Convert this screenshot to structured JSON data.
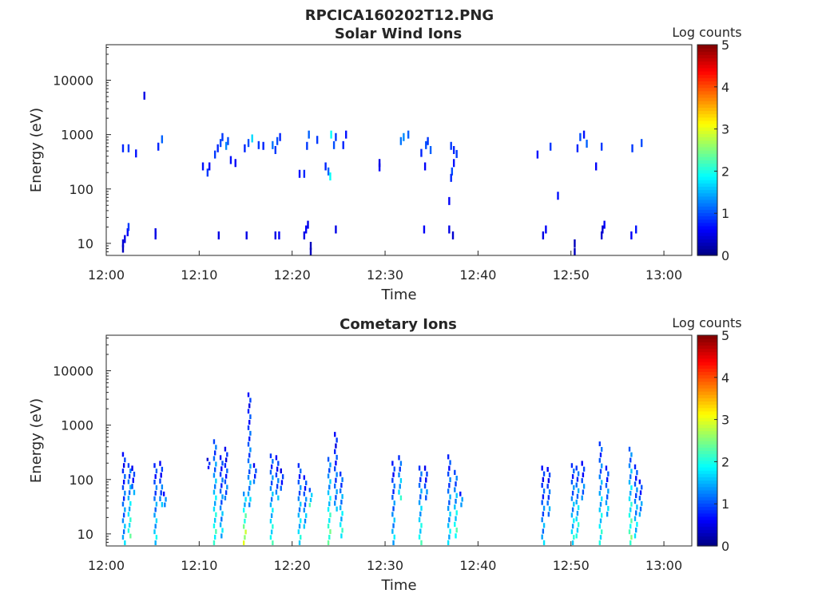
{
  "figure_title": "RPCICA160202T12.PNG",
  "chart_data": [
    {
      "type": "heatmap",
      "title": "Solar Wind Ions",
      "xlabel": "Time",
      "ylabel": "Energy (eV)",
      "x_ticks": [
        "12:00",
        "12:10",
        "12:20",
        "12:30",
        "12:40",
        "12:50",
        "13:00"
      ],
      "xlim": [
        "12:00",
        "13:03"
      ],
      "y_scale": "log",
      "y_ticks": [
        10,
        100,
        1000,
        10000
      ],
      "ylim": [
        6,
        45000
      ],
      "colorbar": {
        "label": "Log counts",
        "range": [
          0,
          5
        ],
        "ticks": [
          0,
          1,
          2,
          3,
          4,
          5
        ],
        "colormap": "jet"
      },
      "grid": false,
      "cells": [
        {
          "t": "12:01.7",
          "e": 8,
          "v": 0.3
        },
        {
          "t": "12:01.7",
          "e": 10,
          "v": 0.4
        },
        {
          "t": "12:01.9",
          "e": 12,
          "v": 0.5
        },
        {
          "t": "12:02.2",
          "e": 16,
          "v": 0.6
        },
        {
          "t": "12:02.3",
          "e": 20,
          "v": 0.9
        },
        {
          "t": "12:01.7",
          "e": 560,
          "v": 0.8
        },
        {
          "t": "12:02.3",
          "e": 560,
          "v": 0.9
        },
        {
          "t": "12:03.1",
          "e": 450,
          "v": 0.7
        },
        {
          "t": "12:04.0",
          "e": 5200,
          "v": 0.5
        },
        {
          "t": "12:05.2",
          "e": 14,
          "v": 0.5
        },
        {
          "t": "12:05.2",
          "e": 16,
          "v": 0.5
        },
        {
          "t": "12:05.5",
          "e": 600,
          "v": 0.8
        },
        {
          "t": "12:05.9",
          "e": 820,
          "v": 1.1
        },
        {
          "t": "12:10.3",
          "e": 260,
          "v": 0.7
        },
        {
          "t": "12:10.8",
          "e": 200,
          "v": 0.9
        },
        {
          "t": "12:11.0",
          "e": 260,
          "v": 0.6
        },
        {
          "t": "12:11.6",
          "e": 430,
          "v": 0.9
        },
        {
          "t": "12:11.9",
          "e": 560,
          "v": 0.8
        },
        {
          "t": "12:12.2",
          "e": 700,
          "v": 1.0
        },
        {
          "t": "12:12.4",
          "e": 900,
          "v": 0.9
        },
        {
          "t": "12:12.8",
          "e": 620,
          "v": 1.3
        },
        {
          "t": "12:13.0",
          "e": 760,
          "v": 1.0
        },
        {
          "t": "12:13.3",
          "e": 340,
          "v": 0.7
        },
        {
          "t": "12:13.8",
          "e": 300,
          "v": 0.6
        },
        {
          "t": "12:12.0",
          "e": 14,
          "v": 0.5
        },
        {
          "t": "12:15.0",
          "e": 14,
          "v": 0.5
        },
        {
          "t": "12:14.8",
          "e": 560,
          "v": 0.8
        },
        {
          "t": "12:15.2",
          "e": 700,
          "v": 1.0
        },
        {
          "t": "12:15.6",
          "e": 850,
          "v": 1.7
        },
        {
          "t": "12:16.3",
          "e": 640,
          "v": 0.9
        },
        {
          "t": "12:16.8",
          "e": 620,
          "v": 0.8
        },
        {
          "t": "12:17.8",
          "e": 640,
          "v": 1.2
        },
        {
          "t": "12:18.1",
          "e": 520,
          "v": 0.9
        },
        {
          "t": "12:18.3",
          "e": 760,
          "v": 1.0
        },
        {
          "t": "12:18.6",
          "e": 900,
          "v": 0.8
        },
        {
          "t": "12:18.1",
          "e": 14,
          "v": 0.5
        },
        {
          "t": "12:18.5",
          "e": 14,
          "v": 0.6
        },
        {
          "t": "12:20.7",
          "e": 190,
          "v": 0.7
        },
        {
          "t": "12:21.2",
          "e": 190,
          "v": 0.8
        },
        {
          "t": "12:21.5",
          "e": 620,
          "v": 0.9
        },
        {
          "t": "12:21.7",
          "e": 1000,
          "v": 1.1
        },
        {
          "t": "12:21.2",
          "e": 14,
          "v": 0.5
        },
        {
          "t": "12:21.4",
          "e": 18,
          "v": 0.6
        },
        {
          "t": "12:21.6",
          "e": 22,
          "v": 0.5
        },
        {
          "t": "12:21.9",
          "e": 9,
          "v": 0.3
        },
        {
          "t": "12:21.9",
          "e": 7,
          "v": 0.3
        },
        {
          "t": "12:22.6",
          "e": 800,
          "v": 0.9
        },
        {
          "t": "12:23.5",
          "e": 260,
          "v": 0.8
        },
        {
          "t": "12:23.8",
          "e": 210,
          "v": 1.1
        },
        {
          "t": "12:24.0",
          "e": 170,
          "v": 1.9
        },
        {
          "t": "12:24.1",
          "e": 1000,
          "v": 1.9
        },
        {
          "t": "12:24.4",
          "e": 640,
          "v": 1.0
        },
        {
          "t": "12:24.6",
          "e": 900,
          "v": 0.9
        },
        {
          "t": "12:25.4",
          "e": 640,
          "v": 0.8
        },
        {
          "t": "12:25.7",
          "e": 1000,
          "v": 0.7
        },
        {
          "t": "12:24.6",
          "e": 18,
          "v": 0.5
        },
        {
          "t": "12:29.3",
          "e": 250,
          "v": 0.6
        },
        {
          "t": "12:29.3",
          "e": 300,
          "v": 0.5
        },
        {
          "t": "12:31.6",
          "e": 760,
          "v": 1.2
        },
        {
          "t": "12:31.9",
          "e": 900,
          "v": 1.3
        },
        {
          "t": "12:32.4",
          "e": 1000,
          "v": 1.1
        },
        {
          "t": "12:33.8",
          "e": 460,
          "v": 0.8
        },
        {
          "t": "12:34.3",
          "e": 640,
          "v": 1.0
        },
        {
          "t": "12:34.5",
          "e": 760,
          "v": 0.9
        },
        {
          "t": "12:34.8",
          "e": 520,
          "v": 1.1
        },
        {
          "t": "12:34.2",
          "e": 260,
          "v": 0.6
        },
        {
          "t": "12:34.1",
          "e": 18,
          "v": 0.6
        },
        {
          "t": "12:37.0",
          "e": 620,
          "v": 0.9
        },
        {
          "t": "12:37.3",
          "e": 520,
          "v": 0.8
        },
        {
          "t": "12:37.6",
          "e": 440,
          "v": 0.9
        },
        {
          "t": "12:37.3",
          "e": 300,
          "v": 0.7
        },
        {
          "t": "12:37.1",
          "e": 210,
          "v": 1.0
        },
        {
          "t": "12:37.0",
          "e": 160,
          "v": 0.8
        },
        {
          "t": "12:36.8",
          "e": 60,
          "v": 0.6
        },
        {
          "t": "12:36.8",
          "e": 18,
          "v": 0.5
        },
        {
          "t": "12:37.2",
          "e": 14,
          "v": 0.4
        },
        {
          "t": "12:46.3",
          "e": 430,
          "v": 0.7
        },
        {
          "t": "12:46.9",
          "e": 14,
          "v": 0.5
        },
        {
          "t": "12:47.2",
          "e": 18,
          "v": 0.6
        },
        {
          "t": "12:47.7",
          "e": 600,
          "v": 0.9
        },
        {
          "t": "12:48.5",
          "e": 75,
          "v": 0.7
        },
        {
          "t": "12:50.3",
          "e": 10,
          "v": 0.3
        },
        {
          "t": "12:50.3",
          "e": 7,
          "v": 0.3
        },
        {
          "t": "12:50.6",
          "e": 560,
          "v": 0.8
        },
        {
          "t": "12:50.9",
          "e": 900,
          "v": 1.0
        },
        {
          "t": "12:51.6",
          "e": 680,
          "v": 1.1
        },
        {
          "t": "12:51.3",
          "e": 1000,
          "v": 0.7
        },
        {
          "t": "12:52.6",
          "e": 260,
          "v": 0.6
        },
        {
          "t": "12:53.2",
          "e": 600,
          "v": 0.9
        },
        {
          "t": "12:53.2",
          "e": 14,
          "v": 0.4
        },
        {
          "t": "12:53.3",
          "e": 18,
          "v": 0.4
        },
        {
          "t": "12:53.5",
          "e": 22,
          "v": 0.6
        },
        {
          "t": "12:56.4",
          "e": 14,
          "v": 0.6
        },
        {
          "t": "12:56.5",
          "e": 560,
          "v": 0.9
        },
        {
          "t": "12:56.9",
          "e": 18,
          "v": 0.7
        },
        {
          "t": "12:57.5",
          "e": 700,
          "v": 1.0
        }
      ]
    },
    {
      "type": "heatmap",
      "title": "Cometary Ions",
      "xlabel": "Time",
      "ylabel": "Energy (eV)",
      "x_ticks": [
        "12:00",
        "12:10",
        "12:20",
        "12:30",
        "12:40",
        "12:50",
        "13:00"
      ],
      "xlim": [
        "12:00",
        "13:03"
      ],
      "y_scale": "log",
      "y_ticks": [
        10,
        100,
        1000,
        10000
      ],
      "ylim": [
        6,
        45000
      ],
      "colorbar": {
        "label": "Log counts",
        "range": [
          0,
          5
        ],
        "ticks": [
          0,
          1,
          2,
          3,
          4,
          5
        ],
        "colormap": "jet"
      },
      "grid": false,
      "bursts": [
        {
          "t": "12:01.8",
          "e_min": 6,
          "e_max": 320,
          "v": 1.2
        },
        {
          "t": "12:02.4",
          "e_min": 8,
          "e_max": 200,
          "v": 1.7
        },
        {
          "t": "12:02.8",
          "e_min": 50,
          "e_max": 180,
          "v": 1.0
        },
        {
          "t": "12:05.2",
          "e_min": 6,
          "e_max": 200,
          "v": 1.4
        },
        {
          "t": "12:05.8",
          "e_min": 30,
          "e_max": 220,
          "v": 1.1
        },
        {
          "t": "12:06.2",
          "e_min": 30,
          "e_max": 60,
          "v": 1.2
        },
        {
          "t": "12:10.9",
          "e_min": 150,
          "e_max": 250,
          "v": 0.7
        },
        {
          "t": "12:11.6",
          "e_min": 6,
          "e_max": 550,
          "v": 1.7
        },
        {
          "t": "12:12.3",
          "e_min": 8,
          "e_max": 280,
          "v": 1.3
        },
        {
          "t": "12:12.8",
          "e_min": 40,
          "e_max": 400,
          "v": 1.0
        },
        {
          "t": "12:14.8",
          "e_min": 6,
          "e_max": 60,
          "v": 2.4
        },
        {
          "t": "12:15.3",
          "e_min": 30,
          "e_max": 4000,
          "v": 1.2
        },
        {
          "t": "12:15.9",
          "e_min": 80,
          "e_max": 200,
          "v": 1.0
        },
        {
          "t": "12:17.7",
          "e_min": 6,
          "e_max": 300,
          "v": 1.6
        },
        {
          "t": "12:18.3",
          "e_min": 40,
          "e_max": 280,
          "v": 1.1
        },
        {
          "t": "12:18.8",
          "e_min": 60,
          "e_max": 160,
          "v": 0.9
        },
        {
          "t": "12:20.7",
          "e_min": 6,
          "e_max": 200,
          "v": 1.5
        },
        {
          "t": "12:21.3",
          "e_min": 12,
          "e_max": 120,
          "v": 1.3
        },
        {
          "t": "12:21.9",
          "e_min": 30,
          "e_max": 70,
          "v": 1.8
        },
        {
          "t": "12:23.9",
          "e_min": 6,
          "e_max": 260,
          "v": 1.9
        },
        {
          "t": "12:24.6",
          "e_min": 25,
          "e_max": 750,
          "v": 1.1
        },
        {
          "t": "12:25.2",
          "e_min": 8,
          "e_max": 140,
          "v": 1.6
        },
        {
          "t": "12:30.8",
          "e_min": 6,
          "e_max": 220,
          "v": 1.3
        },
        {
          "t": "12:31.5",
          "e_min": 40,
          "e_max": 280,
          "v": 1.5
        },
        {
          "t": "12:33.7",
          "e_min": 6,
          "e_max": 180,
          "v": 1.6
        },
        {
          "t": "12:34.3",
          "e_min": 40,
          "e_max": 180,
          "v": 1.0
        },
        {
          "t": "12:36.8",
          "e_min": 6,
          "e_max": 290,
          "v": 1.4
        },
        {
          "t": "12:37.5",
          "e_min": 8,
          "e_max": 150,
          "v": 1.7
        },
        {
          "t": "12:38.1",
          "e_min": 30,
          "e_max": 60,
          "v": 1.3
        },
        {
          "t": "12:46.9",
          "e_min": 6,
          "e_max": 180,
          "v": 1.2
        },
        {
          "t": "12:47.5",
          "e_min": 20,
          "e_max": 170,
          "v": 1.1
        },
        {
          "t": "12:50.1",
          "e_min": 6,
          "e_max": 200,
          "v": 1.5
        },
        {
          "t": "12:50.6",
          "e_min": 8,
          "e_max": 180,
          "v": 1.6
        },
        {
          "t": "12:51.2",
          "e_min": 40,
          "e_max": 220,
          "v": 1.1
        },
        {
          "t": "12:53.1",
          "e_min": 6,
          "e_max": 500,
          "v": 1.6
        },
        {
          "t": "12:53.8",
          "e_min": 20,
          "e_max": 180,
          "v": 1.3
        },
        {
          "t": "12:56.3",
          "e_min": 6,
          "e_max": 400,
          "v": 1.9
        },
        {
          "t": "12:56.9",
          "e_min": 8,
          "e_max": 190,
          "v": 1.4
        },
        {
          "t": "12:57.4",
          "e_min": 20,
          "e_max": 100,
          "v": 1.2
        }
      ]
    }
  ]
}
